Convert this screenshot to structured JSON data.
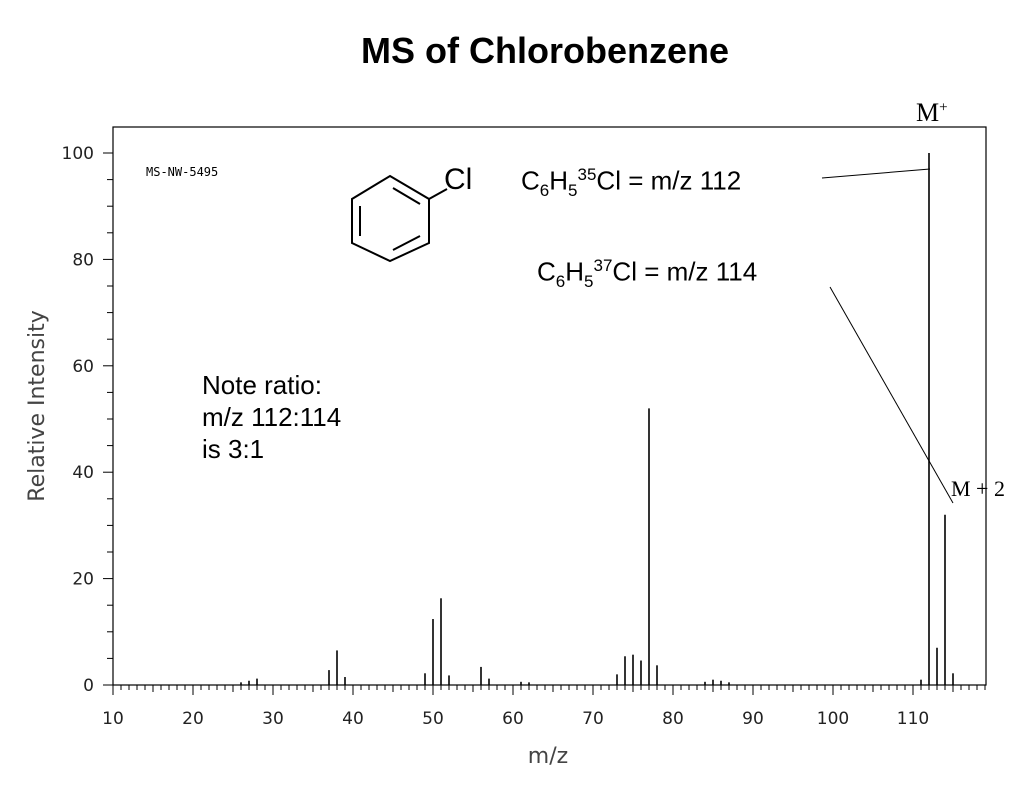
{
  "title": "MS of Chlorobenzene",
  "chart_data": {
    "type": "bar",
    "xlabel": "m/z",
    "ylabel": "Relative Intensity",
    "xlim": [
      10,
      119
    ],
    "ylim": [
      0,
      105
    ],
    "x_ticks": [
      10,
      20,
      30,
      40,
      50,
      60,
      70,
      80,
      90,
      100,
      110
    ],
    "y_ticks": [
      0,
      20,
      40,
      60,
      80,
      100
    ],
    "grid": false,
    "series": [
      {
        "x": [
          26,
          27,
          28,
          37,
          38,
          39,
          49,
          50,
          51,
          52,
          56,
          57,
          61,
          62,
          73,
          74,
          75,
          76,
          77,
          78,
          84,
          85,
          86,
          87,
          111,
          112,
          113,
          114,
          115
        ],
        "values": [
          0.5,
          0.8,
          1.2,
          2.8,
          6.5,
          1.5,
          2.2,
          12.4,
          16.3,
          1.8,
          3.4,
          1.2,
          0.6,
          0.5,
          2.0,
          5.4,
          5.7,
          4.6,
          52.0,
          3.7,
          0.6,
          1.0,
          0.8,
          0.5,
          1.0,
          100,
          7.0,
          32.0,
          2.2
        ]
      }
    ]
  },
  "annotations": {
    "library_id": "MS-NW-5495",
    "molecule_label": "Cl",
    "ion35": {
      "c": "C",
      "c_sub": "6",
      "h": "H",
      "h_sub": "5",
      "iso": "35",
      "rest": "Cl = m/z 112"
    },
    "ion37": {
      "c": "C",
      "c_sub": "6",
      "h": "H",
      "h_sub": "5",
      "iso": "37",
      "rest": "Cl = m/z 114"
    },
    "m_plus": "M",
    "m_plus_sup": "+",
    "m_plus_2": "M + 2",
    "note": [
      "Note ratio:",
      "m/z 112:114",
      "is 3:1"
    ]
  },
  "colors": {
    "ink": "#000000",
    "background": "#ffffff"
  }
}
